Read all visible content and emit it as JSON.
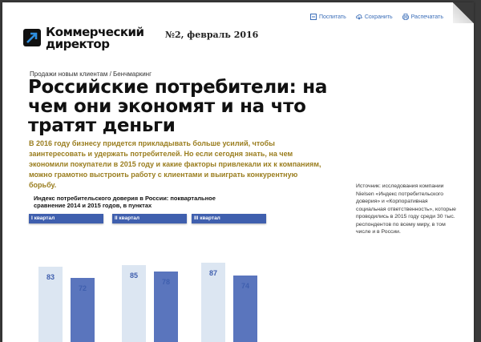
{
  "header": {
    "logo_line1": "Коммерческий",
    "logo_line2": "директор",
    "issue": "№2, февраль 2016"
  },
  "toolbar": {
    "post": "Поспитать",
    "save": "Сохранить",
    "print": "Распечатать"
  },
  "breadcrumb": "Продажи новым клиентам / Бенчмаркинг",
  "title": "Российские потребители: на чем они экономят и на что тратят деньги",
  "lead": "В 2016 году бизнесу придется прикладывать больше усилий, чтобы заинтересовать и удержать потребителей. Но если сегодня знать, на чем экономили покупатели в 2015 году и какие факторы привлекали их к компаниям, можно грамотно выстроить работу с клиентами и выиграть конкурентную борьбу.",
  "chart_data": {
    "type": "bar",
    "title": "Индекс потребительского доверия в России: поквартальное сравнение 2014 и 2015 годов, в пунктах",
    "categories": [
      "I квартал",
      "II квартал",
      "III квартал"
    ],
    "series": [
      {
        "values": [
          83,
          85,
          87
        ],
        "color": "#dce6f2"
      },
      {
        "values": [
          72,
          78,
          74
        ],
        "color": "#5a75bd"
      }
    ],
    "ylim": [
      0,
      120
    ]
  },
  "source": "Источник: исследования компании Nielsen «Индекс потребительского доверия» и «Корпоративная социальная ответственность», которые проводились в 2015 году среди 30 тыс. респондентов по всему миру, в том числе и в России.",
  "colors": {
    "accent": "#3f5fae",
    "lead": "#9a7d1e"
  }
}
